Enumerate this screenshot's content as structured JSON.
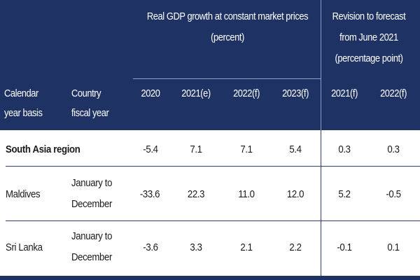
{
  "header": {
    "group1_title_line1": "Real GDP growth at constant market prices",
    "group1_title_line2": "(percent)",
    "group2_title_line1": "Revision to forecast",
    "group2_title_line2": "from June 2021",
    "group2_title_line3": "(percentage point)",
    "col_calendar_line1": "Calendar",
    "col_calendar_line2": "year basis",
    "col_fiscal_line1": "Country",
    "col_fiscal_line2": "fiscal year",
    "years": [
      "2020",
      "2021(e)",
      "2022(f)",
      "2023(f)",
      "2021(f)",
      "2022(f)"
    ]
  },
  "rows": [
    {
      "name": "South Asia region",
      "fiscal_line1": "",
      "fiscal_line2": "",
      "values": [
        "-5.4",
        "7.1",
        "7.1",
        "5.4",
        "0.3",
        "0.3"
      ]
    },
    {
      "name": "Maldives",
      "fiscal_line1": "January to",
      "fiscal_line2": "December",
      "values": [
        "-33.6",
        "22.3",
        "11.0",
        "12.0",
        "5.2",
        "-0.5"
      ]
    },
    {
      "name": "Sri Lanka",
      "fiscal_line1": "January to",
      "fiscal_line2": "December",
      "values": [
        "-3.6",
        "3.3",
        "2.1",
        "2.2",
        "-0.1",
        "0.1"
      ]
    }
  ],
  "colors": {
    "header_bg": "#1f3264",
    "header_text": "#ffffff",
    "body_text": "#1a1a1a"
  }
}
